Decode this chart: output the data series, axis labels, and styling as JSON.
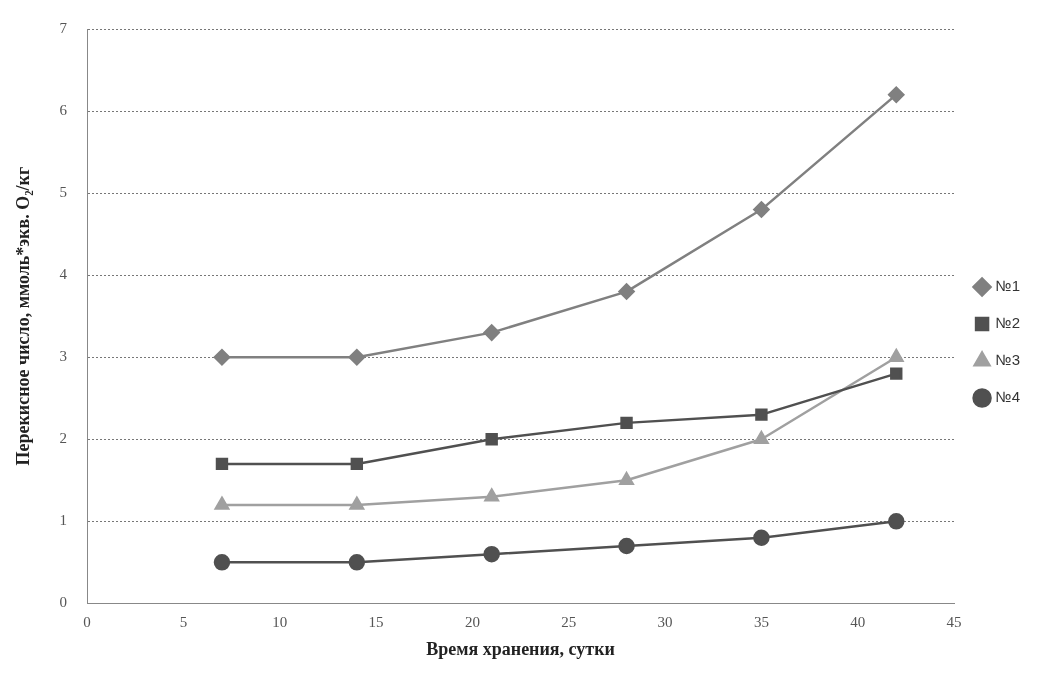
{
  "chart_data": {
    "type": "line",
    "xlabel": "Время хранения, сутки",
    "ylabel": "Перекисное число, ммоль*экв. O₂/кг",
    "x": [
      7,
      14,
      21,
      28,
      35,
      42
    ],
    "xlim": [
      0,
      45
    ],
    "xticks": [
      0,
      5,
      10,
      15,
      20,
      25,
      30,
      35,
      40,
      45
    ],
    "ylim": [
      0,
      7
    ],
    "yticks": [
      0,
      1,
      2,
      3,
      4,
      5,
      6,
      7
    ],
    "grid": "y",
    "legend": "right",
    "series": [
      {
        "name": "№1",
        "color": "#808080",
        "marker": "diamond",
        "values": [
          3.0,
          3.0,
          3.3,
          3.8,
          4.8,
          6.2
        ]
      },
      {
        "name": "№2",
        "color": "#505050",
        "marker": "square",
        "values": [
          1.7,
          1.7,
          2.0,
          2.2,
          2.3,
          2.8
        ]
      },
      {
        "name": "№3",
        "color": "#a0a0a0",
        "marker": "triangle",
        "values": [
          1.2,
          1.2,
          1.3,
          1.5,
          2.0,
          3.0
        ]
      },
      {
        "name": "№4",
        "color": "#505050",
        "marker": "circle",
        "values": [
          0.5,
          0.5,
          0.6,
          0.7,
          0.8,
          1.0
        ]
      }
    ]
  }
}
